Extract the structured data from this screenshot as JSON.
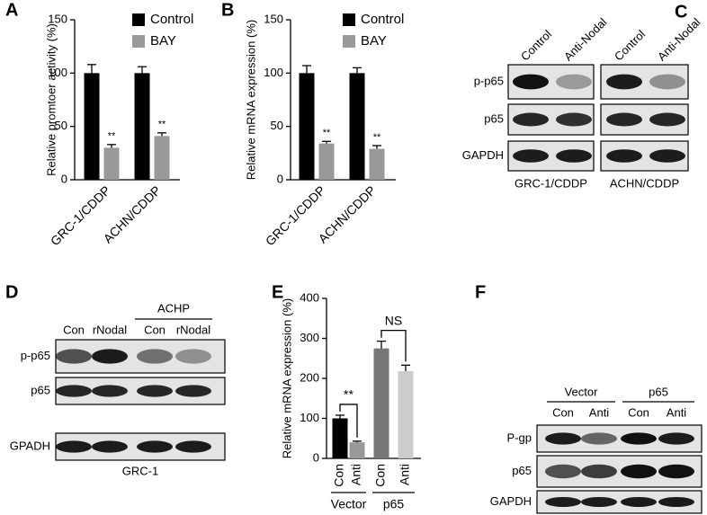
{
  "chart_data": [
    {
      "panel": "A",
      "type": "bar",
      "ylabel": "Relative promtoer activity (%)",
      "categories": [
        "GRC-1/CDDP",
        "ACHN/CDDP"
      ],
      "series": [
        {
          "name": "Control",
          "color": "#000000",
          "values": [
            100,
            100
          ],
          "errors": [
            8,
            6
          ]
        },
        {
          "name": "BAY",
          "color": "#999999",
          "values": [
            30,
            41
          ],
          "errors": [
            3,
            3
          ]
        }
      ],
      "annotations": [
        "**",
        "**"
      ],
      "ylim": [
        0,
        150
      ],
      "yticks": [
        0,
        50,
        100,
        150
      ]
    },
    {
      "panel": "B",
      "type": "bar",
      "ylabel": "Relative mRNA expression (%)",
      "categories": [
        "GRC-1/CDDP",
        "ACHN/CDDP"
      ],
      "series": [
        {
          "name": "Control",
          "color": "#000000",
          "values": [
            100,
            100
          ],
          "errors": [
            7,
            5
          ]
        },
        {
          "name": "BAY",
          "color": "#999999",
          "values": [
            34,
            29
          ],
          "errors": [
            2,
            3
          ]
        }
      ],
      "annotations": [
        "**",
        "**"
      ],
      "ylim": [
        0,
        150
      ],
      "yticks": [
        0,
        50,
        100,
        150
      ]
    },
    {
      "panel": "E",
      "type": "bar",
      "ylabel": "Relative mRNA expression (%)",
      "categories": [
        "Con",
        "Anti",
        "Con",
        "Anti"
      ],
      "groups": [
        "Vector",
        "p65"
      ],
      "values": [
        100,
        40,
        275,
        218
      ],
      "errors": [
        8,
        3,
        18,
        15
      ],
      "colors": [
        "#000000",
        "#999999",
        "#777777",
        "#cccccc"
      ],
      "annotations": [
        "**",
        "NS"
      ],
      "ylim": [
        0,
        400
      ],
      "yticks": [
        0,
        100,
        200,
        300,
        400
      ]
    }
  ],
  "blots": [
    {
      "panel": "C",
      "columns": [
        "Control",
        "Anti-Nodal",
        "Control",
        "Anti-Nodal"
      ],
      "rows": [
        "p-p65",
        "p65",
        "GAPDH"
      ],
      "groups": [
        "GRC-1/CDDP",
        "ACHN/CDDP"
      ]
    },
    {
      "panel": "D",
      "columns": [
        "Con",
        "rNodal",
        "Con",
        "rNodal"
      ],
      "rows": [
        "p-p65",
        "p65",
        "GPADH"
      ],
      "header": "ACHP",
      "footer": "GRC-1"
    },
    {
      "panel": "F",
      "columns": [
        "Con",
        "Anti",
        "Con",
        "Anti"
      ],
      "rows": [
        "P-gp",
        "p65",
        "GAPDH"
      ],
      "groups": [
        "Vector",
        "p65"
      ]
    }
  ]
}
